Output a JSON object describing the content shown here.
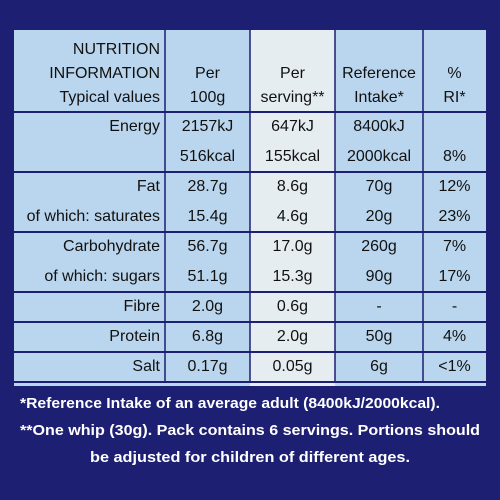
{
  "table": {
    "header": [
      [
        "NUTRITION",
        "INFORMATION",
        "Typical values"
      ],
      [
        "Per",
        "100g"
      ],
      [
        "Per",
        "serving**"
      ],
      [
        "Reference",
        "Intake*"
      ],
      [
        "%",
        "RI*"
      ]
    ],
    "sections": [
      {
        "rows": [
          [
            "Energy",
            "2157kJ",
            "647kJ",
            "8400kJ",
            null
          ],
          [
            null,
            "516kcal",
            "155kcal",
            "2000kcal",
            "8%"
          ]
        ]
      },
      {
        "rows": [
          [
            "Fat",
            "28.7g",
            "8.6g",
            "70g",
            "12%"
          ],
          [
            "of which: saturates",
            "15.4g",
            "4.6g",
            "20g",
            "23%"
          ]
        ]
      },
      {
        "rows": [
          [
            "Carbohydrate",
            "56.7g",
            "17.0g",
            "260g",
            "7%"
          ],
          [
            "of which: sugars",
            "51.1g",
            "15.3g",
            "90g",
            "17%"
          ]
        ]
      },
      {
        "rows": [
          [
            "Fibre",
            "2.0g",
            "0.6g",
            "-",
            "-"
          ]
        ]
      },
      {
        "rows": [
          [
            "Protein",
            "6.8g",
            "2.0g",
            "50g",
            "4%"
          ]
        ]
      },
      {
        "rows": [
          [
            "Salt",
            "0.17g",
            "0.05g",
            "6g",
            "<1%"
          ]
        ]
      }
    ]
  },
  "footnotes": [
    "*Reference Intake of an average adult (8400kJ/2000kcal).",
    "**One whip (30g). Pack contains 6 servings. Portions should",
    "be adjusted for children of different ages."
  ]
}
